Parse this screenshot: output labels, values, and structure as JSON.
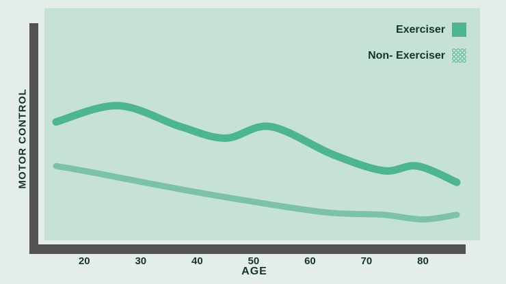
{
  "colors": {
    "page_bg": "#e4ede8",
    "plot_bg": "#c6e2d4",
    "axis_bar": "#525252",
    "text": "#16352a",
    "exerciser_line": "#4eb68f",
    "non_exerciser_line": "#7cc3a3"
  },
  "axes": {
    "y_label": "MOTOR CONTROL",
    "x_label": "AGE"
  },
  "legend": {
    "items": [
      {
        "label": "Exerciser",
        "swatch": "solid-green-square"
      },
      {
        "label": "Non- Exerciser",
        "swatch": "dotted-green-square"
      }
    ]
  },
  "chart_data": {
    "type": "line",
    "xlabel": "AGE",
    "ylabel": "MOTOR CONTROL",
    "x_range": [
      15,
      86
    ],
    "x_ticks": [
      20,
      30,
      40,
      50,
      60,
      70,
      80
    ],
    "y_range": [
      0,
      100
    ],
    "y_tick_labels_shown": false,
    "grid": false,
    "legend_position": "top-right",
    "series": [
      {
        "name": "Exerciser",
        "color": "#4eb68f",
        "stroke_width": 11,
        "x": [
          15,
          26,
          37,
          45,
          53,
          64,
          73,
          79,
          86
        ],
        "values": [
          51,
          58,
          49,
          44,
          49,
          37,
          30,
          32,
          25
        ]
      },
      {
        "name": "Non- Exerciser",
        "color": "#7cc3a3",
        "stroke_width": 9,
        "x": [
          15,
          22,
          37,
          49,
          63,
          73,
          80,
          86
        ],
        "values": [
          32,
          29,
          22,
          17,
          12,
          11,
          9,
          11
        ]
      }
    ]
  }
}
